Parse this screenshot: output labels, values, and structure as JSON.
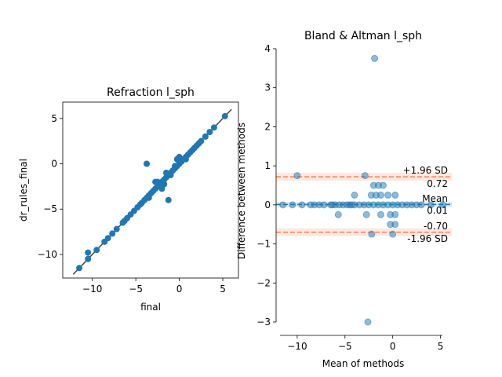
{
  "chart_data": [
    {
      "type": "scatter",
      "title": "Refraction l_sph",
      "xlabel": "final",
      "ylabel": "dr_rules_final",
      "xlim": [
        -13.4,
        6.8
      ],
      "ylim": [
        -12.6,
        6.8
      ],
      "xticks": [
        -10,
        -5,
        0,
        5
      ],
      "yticks": [
        -10,
        -5,
        0,
        5
      ],
      "grid": false,
      "identity_line": [
        [
          -12.2,
          -12.2
        ],
        [
          6.0,
          6.0
        ]
      ],
      "points_color": "#1f77b4",
      "line_color": "#404040",
      "points": [
        [
          -11.5,
          -11.5
        ],
        [
          -10.5,
          -10.5
        ],
        [
          -10.5,
          -9.8
        ],
        [
          -9.5,
          -9.5
        ],
        [
          -8.6,
          -8.6
        ],
        [
          -8.2,
          -8.2
        ],
        [
          -7.7,
          -7.7
        ],
        [
          -7.2,
          -7.2
        ],
        [
          -6.5,
          -6.5
        ],
        [
          -6.3,
          -6.3
        ],
        [
          -6.0,
          -6.0
        ],
        [
          -5.6,
          -5.6
        ],
        [
          -5.2,
          -5.2
        ],
        [
          -4.8,
          -4.8
        ],
        [
          -4.5,
          -4.5
        ],
        [
          -4.3,
          -4.3
        ],
        [
          -4.0,
          -4.0
        ],
        [
          -3.75,
          -3.75
        ],
        [
          -3.5,
          -3.5
        ],
        [
          -3.25,
          -3.25
        ],
        [
          -3.0,
          -3.0
        ],
        [
          -2.75,
          -2.75
        ],
        [
          -2.5,
          -2.5
        ],
        [
          -2.25,
          -2.25
        ],
        [
          -2.0,
          -2.0
        ],
        [
          -1.75,
          -1.75
        ],
        [
          -1.5,
          -1.5
        ],
        [
          -1.25,
          -1.25
        ],
        [
          -1.0,
          -1.0
        ],
        [
          -0.75,
          -0.75
        ],
        [
          -0.5,
          -0.5
        ],
        [
          -0.25,
          -0.25
        ],
        [
          0.0,
          0.0
        ],
        [
          0.25,
          0.25
        ],
        [
          0.5,
          0.5
        ],
        [
          0.75,
          0.75
        ],
        [
          1.0,
          1.0
        ],
        [
          1.25,
          1.25
        ],
        [
          1.5,
          1.5
        ],
        [
          1.75,
          1.75
        ],
        [
          2.0,
          2.0
        ],
        [
          2.25,
          2.25
        ],
        [
          2.5,
          2.5
        ],
        [
          3.0,
          3.0
        ],
        [
          3.5,
          3.5
        ],
        [
          4.0,
          4.0
        ],
        [
          5.25,
          5.25
        ],
        [
          -2.0,
          -2.75
        ],
        [
          -2.75,
          -2.0
        ],
        [
          -1.75,
          -2.25
        ],
        [
          -3.5,
          -3.75
        ],
        [
          -1.0,
          -1.25
        ],
        [
          0.0,
          0.75
        ],
        [
          -0.5,
          -0.25
        ],
        [
          -3.75,
          0.0
        ],
        [
          -1.25,
          -4.0
        ],
        [
          -0.25,
          0.5
        ],
        [
          -2.5,
          -2.0
        ],
        [
          -1.5,
          -1.0
        ],
        [
          0.75,
          0.5
        ]
      ]
    },
    {
      "type": "scatter",
      "title": "Bland & Altman l_sph",
      "xlabel": "Mean of methods",
      "ylabel": "Difference between methods",
      "xlim": [
        -11.8,
        5.2
      ],
      "ylim": [
        -3.1,
        4.0
      ],
      "xticks": [
        -10,
        -5,
        0,
        5
      ],
      "yticks": [
        -3,
        -2,
        -1,
        0,
        1,
        2,
        3,
        4
      ],
      "grid": false,
      "mean": 0.01,
      "upper_loa": 0.72,
      "lower_loa": -0.7,
      "mean_label": "Mean",
      "mean_value_text": "0.01",
      "upper_label": "+1.96 SD",
      "upper_value_text": "0.72",
      "lower_label": "-1.96 SD",
      "lower_value_text": "-0.70",
      "points_color": "#1f77b4",
      "loa_color": "#ff7f50",
      "mean_color": "#1f77b4",
      "points": [
        [
          -1.9,
          3.75
        ],
        [
          -2.6,
          -3.0
        ],
        [
          -10.0,
          0.75
        ],
        [
          -2.9,
          0.75
        ],
        [
          -4.0,
          0.25
        ],
        [
          -2.0,
          0.5
        ],
        [
          -1.5,
          0.5
        ],
        [
          -1.0,
          0.5
        ],
        [
          -2.25,
          0.25
        ],
        [
          -1.75,
          0.25
        ],
        [
          -1.25,
          0.25
        ],
        [
          -0.5,
          0.25
        ],
        [
          0.25,
          0.25
        ],
        [
          -5.7,
          -0.25
        ],
        [
          -2.75,
          -0.25
        ],
        [
          -1.25,
          -0.25
        ],
        [
          -0.25,
          -0.25
        ],
        [
          0.25,
          -0.25
        ],
        [
          -0.25,
          -0.5
        ],
        [
          0.25,
          -0.5
        ],
        [
          -2.2,
          -0.75
        ],
        [
          0.0,
          -0.75
        ],
        [
          -11.5,
          0.0
        ],
        [
          -10.5,
          0.0
        ],
        [
          -9.5,
          0.0
        ],
        [
          -8.6,
          0.0
        ],
        [
          -8.2,
          0.0
        ],
        [
          -7.7,
          0.0
        ],
        [
          -7.2,
          0.0
        ],
        [
          -6.5,
          0.0
        ],
        [
          -6.3,
          0.0
        ],
        [
          -6.0,
          0.0
        ],
        [
          -5.6,
          0.0
        ],
        [
          -5.2,
          0.0
        ],
        [
          -4.8,
          0.0
        ],
        [
          -4.5,
          0.0
        ],
        [
          -4.3,
          0.0
        ],
        [
          -4.0,
          0.0
        ],
        [
          -3.5,
          0.0
        ],
        [
          -3.0,
          0.0
        ],
        [
          -2.5,
          0.0
        ],
        [
          -2.0,
          0.0
        ],
        [
          -1.5,
          0.0
        ],
        [
          -1.0,
          0.0
        ],
        [
          -0.5,
          0.0
        ],
        [
          0.0,
          0.0
        ],
        [
          0.5,
          0.0
        ],
        [
          1.0,
          0.0
        ],
        [
          1.5,
          0.0
        ],
        [
          2.0,
          0.0
        ],
        [
          2.5,
          0.0
        ],
        [
          3.0,
          0.0
        ],
        [
          4.0,
          0.0
        ],
        [
          5.25,
          0.0
        ]
      ]
    }
  ]
}
